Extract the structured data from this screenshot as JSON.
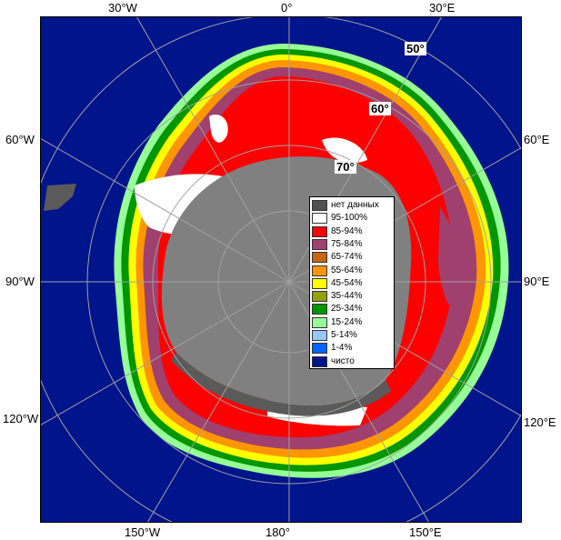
{
  "colors": {
    "water": "#00148c",
    "land": "#808080",
    "shelf": "#5a5a5a",
    "grid": "#a0a0a0"
  },
  "longitudes": {
    "top_left": "30°W",
    "top_center": "0°",
    "top_right": "30°E",
    "left_upper": "60°W",
    "right_upper": "60°E",
    "left_middle": "90°W",
    "right_middle": "90°E",
    "left_lower": "120°W",
    "right_lower": "120°E",
    "bottom_left": "150°W",
    "bottom_center": "180°",
    "bottom_right": "150°E"
  },
  "latitudes": {
    "lat50": "50°",
    "lat60": "60°",
    "lat70": "70°"
  },
  "legend": [
    {
      "label": "нет данных",
      "color": "#505050"
    },
    {
      "label": "95-100%",
      "color": "#ffffff"
    },
    {
      "label": "85-94%",
      "color": "#ff0000"
    },
    {
      "label": "75-84%",
      "color": "#a0406e"
    },
    {
      "label": "65-74%",
      "color": "#c86414"
    },
    {
      "label": "55-64%",
      "color": "#ff9600"
    },
    {
      "label": "45-54%",
      "color": "#ffff00"
    },
    {
      "label": "35-44%",
      "color": "#96a000"
    },
    {
      "label": "25-34%",
      "color": "#009600"
    },
    {
      "label": "15-24%",
      "color": "#96ff96"
    },
    {
      "label": "5-14%",
      "color": "#96c8ff"
    },
    {
      "label": "1-4%",
      "color": "#0064ff"
    },
    {
      "label": "чисто",
      "color": "#00148c"
    }
  ]
}
